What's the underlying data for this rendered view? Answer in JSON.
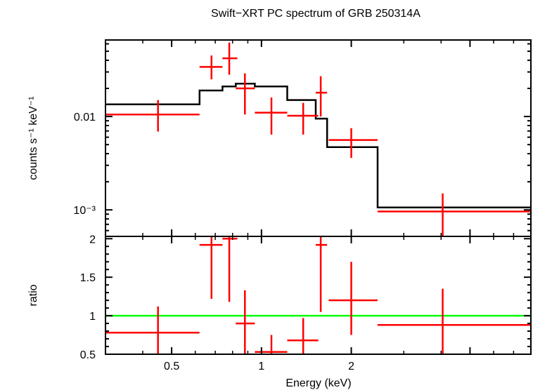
{
  "chart_data": {
    "type": "line",
    "title": "Swift−XRT PC spectrum of GRB 250314A",
    "xlabel": "Energy (keV)",
    "x_scale": "log",
    "xlim": [
      0.3,
      8.0
    ],
    "x_tick_labels": [
      {
        "value": 0.5,
        "label": "0.5"
      },
      {
        "value": 1,
        "label": "1"
      },
      {
        "value": 2,
        "label": "2"
      }
    ],
    "panels": [
      {
        "name": "spectrum",
        "ylabel": "counts s⁻¹ keV⁻¹",
        "y_scale": "log",
        "ylim": [
          0.00052,
          0.066
        ],
        "y_tick_labels": [
          {
            "value": 0.01,
            "label": "0.01"
          },
          {
            "value": 0.001,
            "label": "10⁻³"
          }
        ],
        "data": {
          "color": "#ff0000",
          "points": [
            {
              "x": 0.45,
              "xlo": 0.3,
              "xhi": 0.62,
              "y": 0.0105,
              "ylo": 0.0069,
              "yhi": 0.015
            },
            {
              "x": 0.68,
              "xlo": 0.62,
              "xhi": 0.74,
              "y": 0.034,
              "ylo": 0.025,
              "yhi": 0.045
            },
            {
              "x": 0.78,
              "xlo": 0.74,
              "xhi": 0.83,
              "y": 0.042,
              "ylo": 0.028,
              "yhi": 0.062
            },
            {
              "x": 0.88,
              "xlo": 0.82,
              "xhi": 0.95,
              "y": 0.02,
              "ylo": 0.0105,
              "yhi": 0.029
            },
            {
              "x": 1.08,
              "xlo": 0.95,
              "xhi": 1.22,
              "y": 0.011,
              "ylo": 0.0064,
              "yhi": 0.016
            },
            {
              "x": 1.38,
              "xlo": 1.22,
              "xhi": 1.55,
              "y": 0.0102,
              "ylo": 0.0064,
              "yhi": 0.014
            },
            {
              "x": 1.58,
              "xlo": 1.52,
              "xhi": 1.66,
              "y": 0.018,
              "ylo": 0.01,
              "yhi": 0.027
            },
            {
              "x": 2.0,
              "xlo": 1.68,
              "xhi": 2.45,
              "y": 0.0056,
              "ylo": 0.0036,
              "yhi": 0.0075
            },
            {
              "x": 4.05,
              "xlo": 2.45,
              "xhi": 8.0,
              "y": 0.00096,
              "ylo": 0.00052,
              "yhi": 0.0015
            }
          ]
        },
        "model": {
          "color": "#000000",
          "steps": [
            {
              "xlo": 0.3,
              "xhi": 0.62,
              "y": 0.0135
            },
            {
              "xlo": 0.62,
              "xhi": 0.74,
              "y": 0.019
            },
            {
              "xlo": 0.74,
              "xhi": 0.82,
              "y": 0.021
            },
            {
              "xlo": 0.82,
              "xhi": 0.95,
              "y": 0.0225
            },
            {
              "xlo": 0.95,
              "xhi": 1.22,
              "y": 0.021
            },
            {
              "xlo": 1.22,
              "xhi": 1.52,
              "y": 0.015
            },
            {
              "xlo": 1.52,
              "xhi": 1.66,
              "y": 0.0095
            },
            {
              "xlo": 1.66,
              "xhi": 2.45,
              "y": 0.0047
            },
            {
              "xlo": 2.45,
              "xhi": 8.0,
              "y": 0.00106
            }
          ]
        }
      },
      {
        "name": "ratio",
        "ylabel": "ratio",
        "y_scale": "linear",
        "ylim": [
          0.5,
          2.03
        ],
        "y_tick_labels": [
          {
            "value": 0.5,
            "label": "0.5"
          },
          {
            "value": 1,
            "label": "1"
          },
          {
            "value": 1.5,
            "label": "1.5"
          },
          {
            "value": 2,
            "label": "2"
          }
        ],
        "reference_line": {
          "y": 1,
          "color": "#00ff00"
        },
        "data": {
          "color": "#ff0000",
          "points": [
            {
              "x": 0.45,
              "xlo": 0.3,
              "xhi": 0.62,
              "y": 0.78,
              "ylo": 0.5,
              "yhi": 1.12
            },
            {
              "x": 0.68,
              "xlo": 0.62,
              "xhi": 0.74,
              "y": 1.92,
              "ylo": 1.22,
              "yhi": 2.03
            },
            {
              "x": 0.78,
              "xlo": 0.74,
              "xhi": 0.83,
              "y": 2.0,
              "ylo": 1.18,
              "yhi": 2.03
            },
            {
              "x": 0.88,
              "xlo": 0.82,
              "xhi": 0.95,
              "y": 0.9,
              "ylo": 0.5,
              "yhi": 1.33
            },
            {
              "x": 1.08,
              "xlo": 0.95,
              "xhi": 1.22,
              "y": 0.53,
              "ylo": 0.5,
              "yhi": 0.75
            },
            {
              "x": 1.38,
              "xlo": 1.22,
              "xhi": 1.55,
              "y": 0.68,
              "ylo": 0.5,
              "yhi": 0.97
            },
            {
              "x": 1.58,
              "xlo": 1.52,
              "xhi": 1.66,
              "y": 1.92,
              "ylo": 1.05,
              "yhi": 2.03
            },
            {
              "x": 2.0,
              "xlo": 1.68,
              "xhi": 2.45,
              "y": 1.2,
              "ylo": 0.75,
              "yhi": 1.7
            },
            {
              "x": 4.05,
              "xlo": 2.45,
              "xhi": 8.0,
              "y": 0.88,
              "ylo": 0.5,
              "yhi": 1.35
            }
          ]
        }
      }
    ],
    "grid": false,
    "legend": "none"
  }
}
